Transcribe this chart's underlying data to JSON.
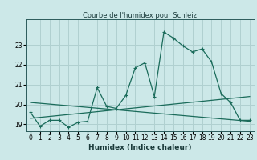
{
  "title": "Courbe de l'humidex pour Schleiz",
  "xlabel": "Humidex (Indice chaleur)",
  "bg_color": "#cce8e8",
  "grid_color": "#b0d0d0",
  "line_color": "#1a6b5a",
  "xlim": [
    -0.5,
    23.5
  ],
  "ylim": [
    18.65,
    24.3
  ],
  "yticks": [
    19,
    20,
    21,
    22,
    23
  ],
  "xticks": [
    0,
    1,
    2,
    3,
    4,
    5,
    6,
    7,
    8,
    9,
    10,
    11,
    12,
    13,
    14,
    15,
    16,
    17,
    18,
    19,
    20,
    21,
    22,
    23
  ],
  "line1_x": [
    0,
    1,
    2,
    3,
    4,
    5,
    6,
    7,
    8,
    9,
    10,
    11,
    12,
    13,
    14,
    15,
    16,
    17,
    18,
    19,
    20,
    21,
    22,
    23
  ],
  "line1_y": [
    19.6,
    18.9,
    19.2,
    19.2,
    18.85,
    19.1,
    19.15,
    20.85,
    19.9,
    19.8,
    20.45,
    21.85,
    22.1,
    20.4,
    23.65,
    23.35,
    22.95,
    22.65,
    22.8,
    22.15,
    20.55,
    20.1,
    19.2,
    19.2
  ],
  "line2_x": [
    0,
    23
  ],
  "line2_y": [
    20.1,
    19.15
  ],
  "line3_x": [
    0,
    23
  ],
  "line3_y": [
    19.3,
    20.4
  ]
}
